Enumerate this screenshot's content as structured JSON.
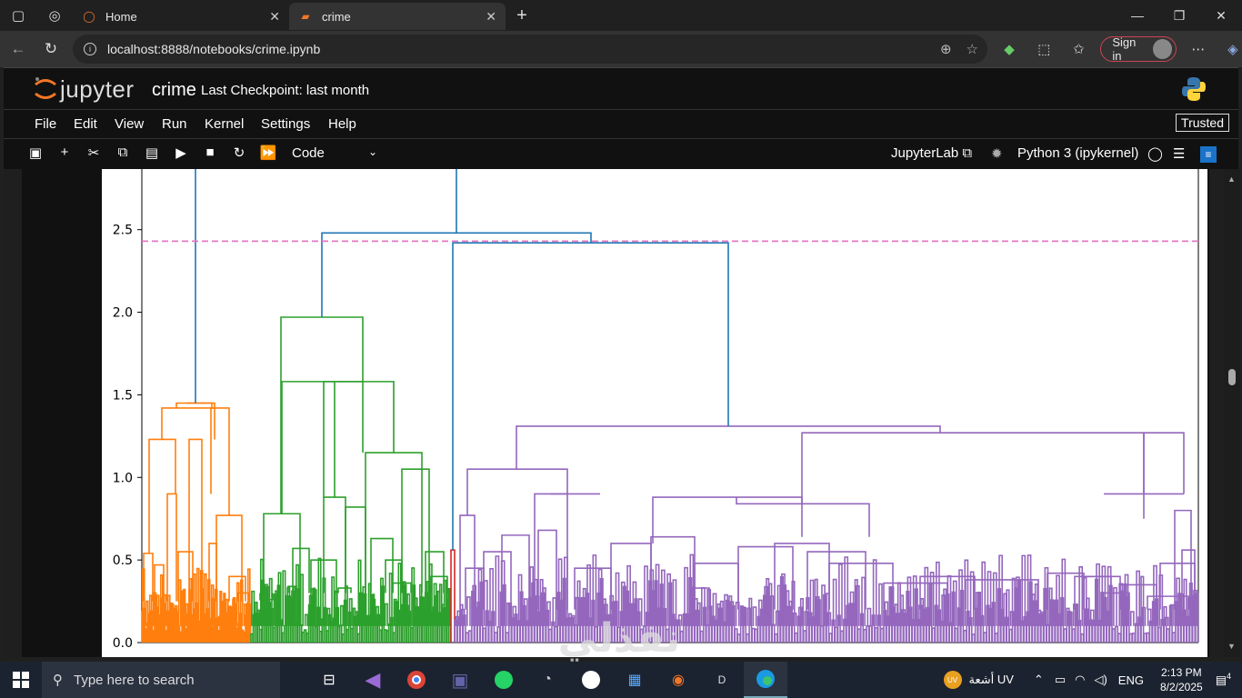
{
  "browser": {
    "tabs": [
      {
        "title": "Home"
      },
      {
        "title": "crime"
      }
    ],
    "url": "localhost:8888/notebooks/crime.ipynb",
    "sign_in_label": "Sign in"
  },
  "jupyter": {
    "logo_text": "jupyter",
    "notebook_name": "crime",
    "checkpoint_text": "Last Checkpoint: last month",
    "menu": [
      "File",
      "Edit",
      "View",
      "Run",
      "Kernel",
      "Settings",
      "Help"
    ],
    "trusted_label": "Trusted",
    "cell_type": "Code",
    "jupyterlab_label": "JupyterLab",
    "kernel_label": "Python 3 (ipykernel)"
  },
  "chart_data": {
    "type": "dendrogram",
    "ylim": [
      0,
      2.9
    ],
    "y_ticks": [
      "0.0",
      "0.5",
      "1.0",
      "1.5",
      "2.0",
      "2.5"
    ],
    "cut_line_y": 2.43,
    "colors": {
      "orange": "#ff7f0e",
      "green": "#2ca02c",
      "red": "#d62728",
      "purple": "#9467bd",
      "blue": "#1f77b4",
      "cut_line": "#e377c2"
    },
    "clusters": [
      {
        "color": "orange",
        "merge_height": 1.45
      },
      {
        "color": "green",
        "merge_height": 1.97
      },
      {
        "color": "red",
        "merge_height": 0.56
      },
      {
        "color": "purple",
        "merge_height": 1.31
      }
    ],
    "top_links": [
      {
        "height": 2.88,
        "color": "blue"
      },
      {
        "height": 2.48,
        "color": "blue"
      },
      {
        "height": 2.42,
        "color": "blue"
      }
    ]
  },
  "taskbar": {
    "search_placeholder": "Type here to search",
    "weather": "أشعة UV",
    "weather_badge": "UV",
    "lang": "ENG",
    "time": "2:13 PM",
    "date": "8/2/2025",
    "notifications": "4",
    "watermark_text": "نفذلي",
    "watermark_url": "nafezly.com"
  }
}
